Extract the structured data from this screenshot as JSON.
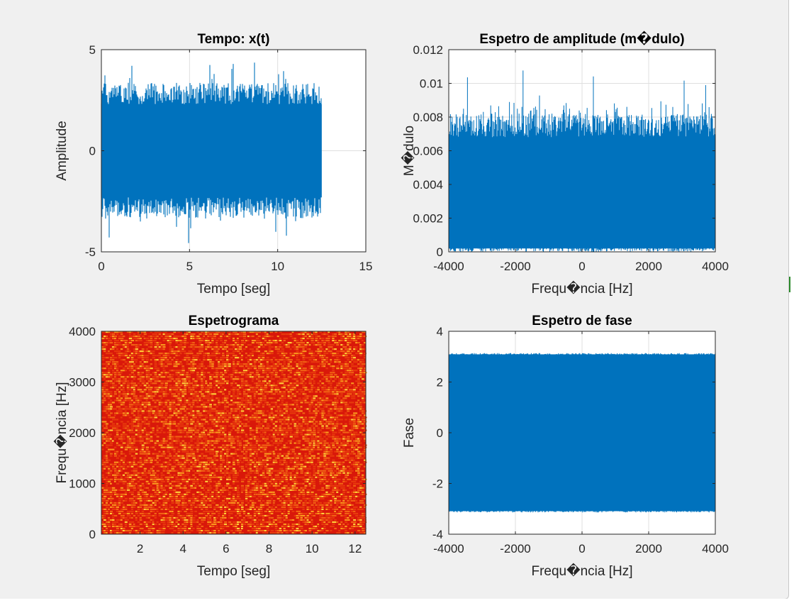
{
  "chart_data": [
    {
      "id": "time",
      "type": "line",
      "title": "Tempo: x(t)",
      "xlabel": "Tempo [seg]",
      "ylabel": "Amplitude",
      "xlim": [
        0,
        15
      ],
      "ylim": [
        -5,
        5
      ],
      "xticks": [
        0,
        5,
        10,
        15
      ],
      "yticks": [
        -5,
        0,
        5
      ],
      "grid": true,
      "color": "#0072bd",
      "series": [
        {
          "signal": "noise",
          "x_range": [
            0,
            12.5
          ],
          "envelope": [
            -3.2,
            3.2
          ],
          "peak_max": 4.5,
          "peak_min": -4.6
        }
      ]
    },
    {
      "id": "amplitude",
      "type": "line",
      "title": "Espetro de amplitude (m�dulo)",
      "xlabel": "Frequ�ncia [Hz]",
      "ylabel": "M�dulo",
      "xlim": [
        -4000,
        4000
      ],
      "ylim": [
        0,
        0.012
      ],
      "xticks": [
        -4000,
        -2000,
        0,
        2000,
        4000
      ],
      "yticks": [
        0,
        0.002,
        0.004,
        0.006,
        0.008,
        0.01,
        0.012
      ],
      "grid": true,
      "color": "#0072bd",
      "series": [
        {
          "signal": "spectrum",
          "x_range": [
            -4000,
            4000
          ],
          "dense_level": 0.0068,
          "peak_max": 0.0113,
          "floor": 0.0002
        }
      ]
    },
    {
      "id": "spectrogram",
      "type": "heatmap",
      "title": "Espetrograma",
      "xlabel": "Tempo [seg]",
      "ylabel": "Frequ�ncia [Hz]",
      "xlim": [
        0.2,
        12.5
      ],
      "ylim": [
        0,
        4000
      ],
      "xticks": [
        2,
        4,
        6,
        8,
        10,
        12
      ],
      "yticks": [
        0,
        1000,
        2000,
        3000,
        4000
      ],
      "colors": [
        "#d9180a",
        "#e83a0d",
        "#f26414",
        "#fb9a1e",
        "#ffd23a"
      ],
      "grid": false
    },
    {
      "id": "phase",
      "type": "line",
      "title": "Espetro de fase",
      "xlabel": "Frequ�ncia [Hz]",
      "ylabel": "Fase",
      "xlim": [
        -4000,
        4000
      ],
      "ylim": [
        -4,
        4
      ],
      "xticks": [
        -4000,
        -2000,
        0,
        2000,
        4000
      ],
      "yticks": [
        -4,
        -2,
        0,
        2,
        4
      ],
      "grid": true,
      "color": "#0072bd",
      "series": [
        {
          "signal": "phase",
          "x_range": [
            -4000,
            4000
          ],
          "bounds": [
            -3.1416,
            3.1416
          ]
        }
      ]
    }
  ]
}
